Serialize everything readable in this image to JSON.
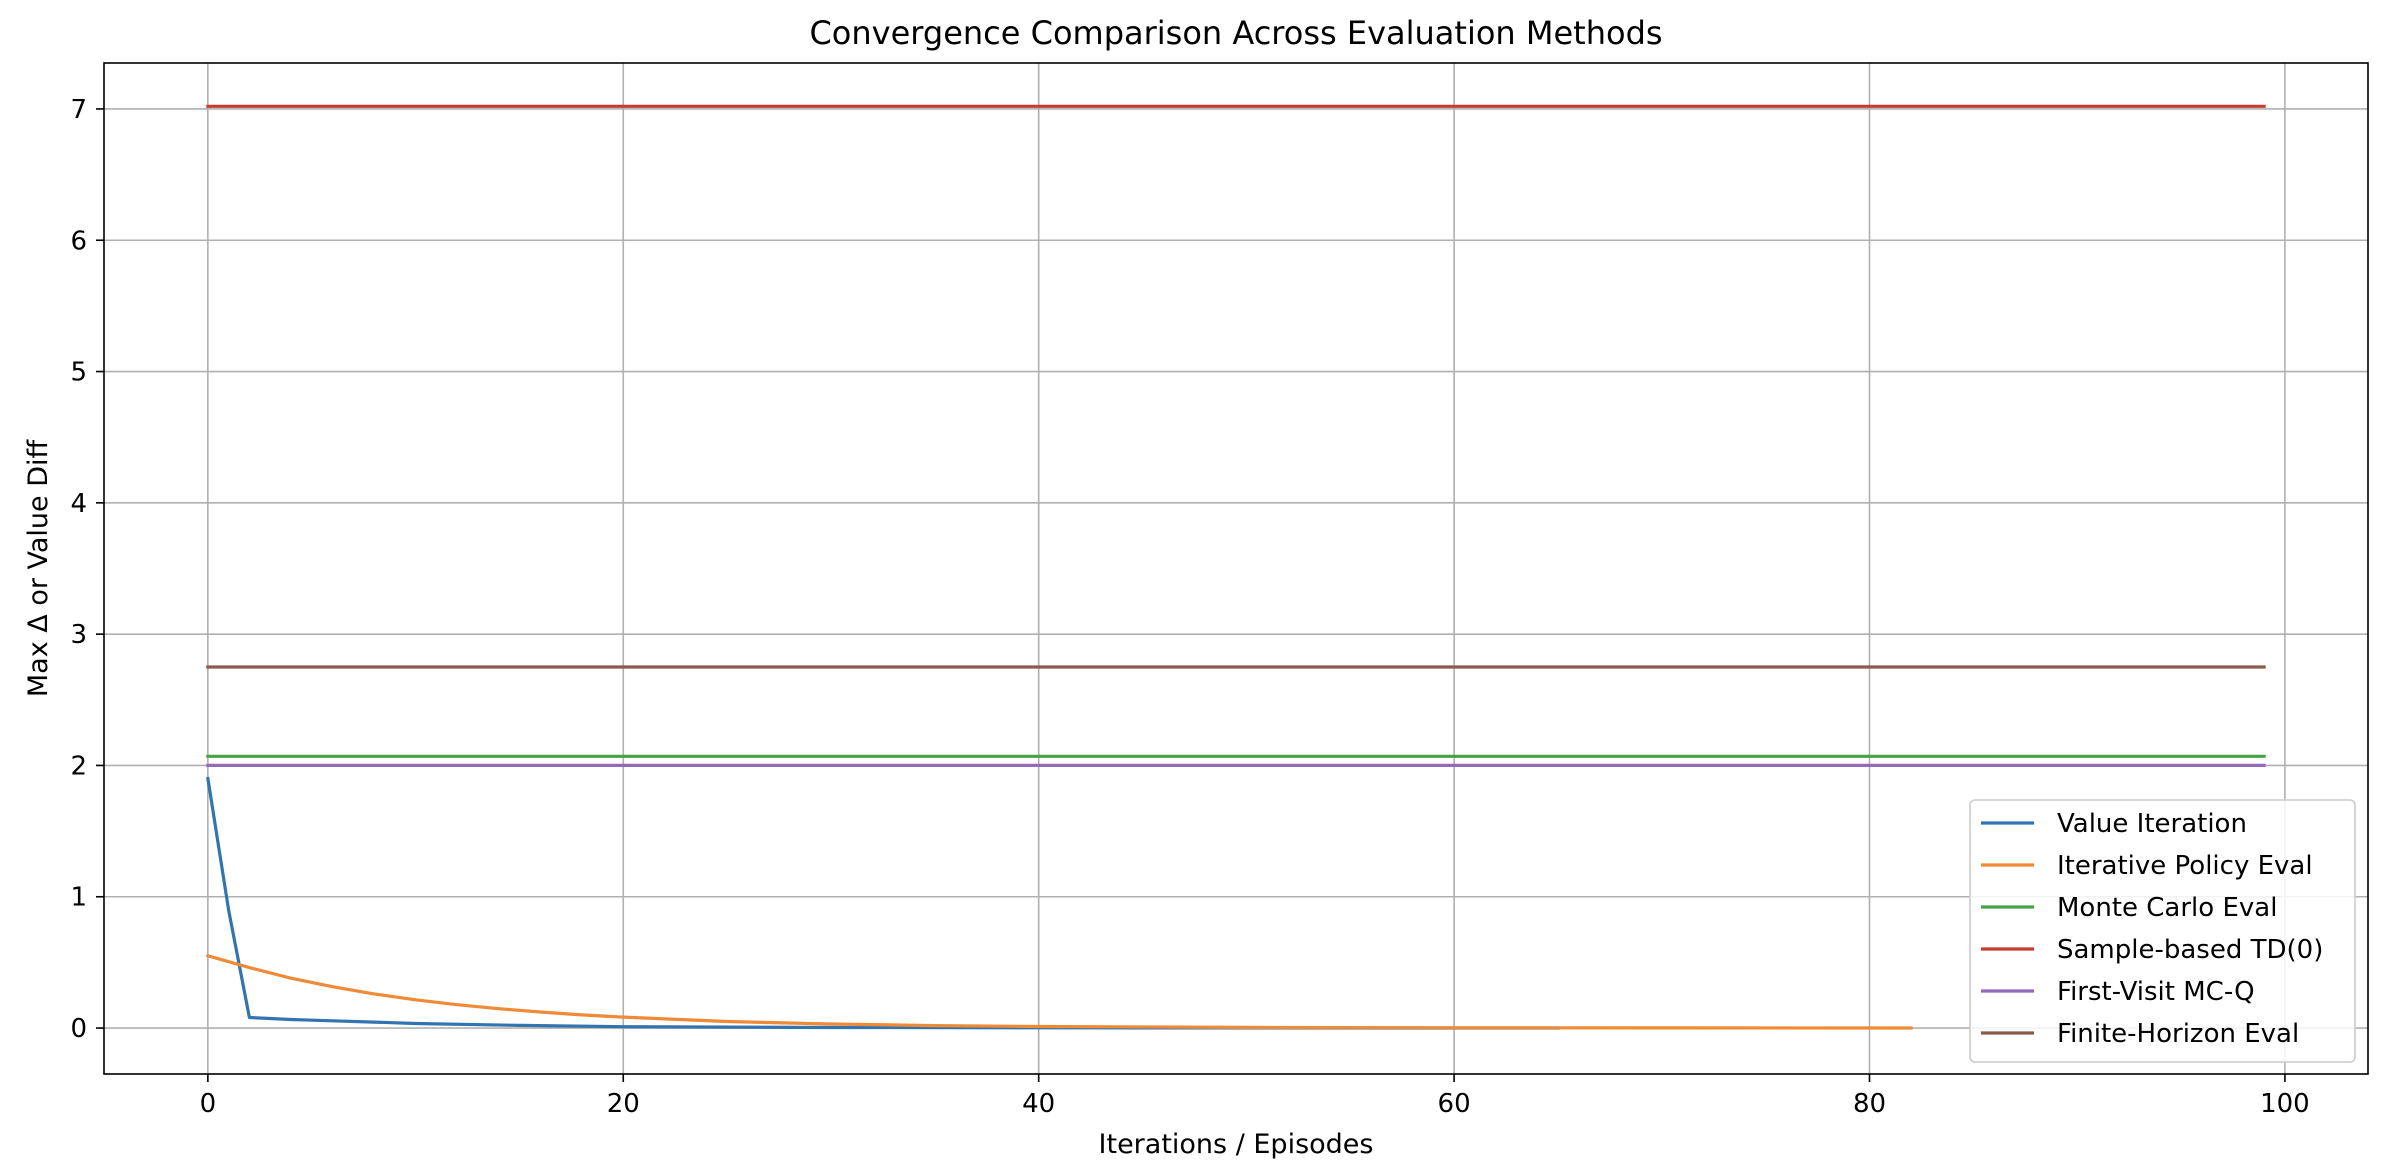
{
  "chart_data": {
    "type": "line",
    "title": "Convergence Comparison Across Evaluation Methods",
    "xlabel": "Iterations / Episodes",
    "ylabel": "Max Δ or Value Diff",
    "xlim": [
      -5,
      104
    ],
    "ylim": [
      -0.35,
      7.35
    ],
    "xticks": [
      0,
      20,
      40,
      60,
      80,
      100
    ],
    "yticks": [
      0,
      1,
      2,
      3,
      4,
      5,
      6,
      7
    ],
    "grid": true,
    "legend_position": "lower-right",
    "series": [
      {
        "name": "Value Iteration",
        "color": "#3274b0",
        "x": [
          0,
          1,
          2,
          4,
          6,
          8,
          10,
          15,
          20,
          30,
          40,
          50,
          60,
          65
        ],
        "y": [
          1.9,
          0.9,
          0.08,
          0.065,
          0.055,
          0.045,
          0.035,
          0.02,
          0.01,
          0.004,
          0.002,
          0.001,
          0.0005,
          0.0003
        ]
      },
      {
        "name": "Iterative Policy Eval",
        "color": "#ef8a36",
        "x": [
          0,
          2,
          4,
          6,
          8,
          10,
          12,
          14,
          16,
          18,
          20,
          25,
          30,
          35,
          40,
          50,
          60,
          70,
          82
        ],
        "y": [
          0.55,
          0.46,
          0.38,
          0.315,
          0.26,
          0.215,
          0.178,
          0.147,
          0.122,
          0.1,
          0.083,
          0.05,
          0.031,
          0.019,
          0.012,
          0.005,
          0.002,
          0.001,
          0.0002
        ]
      },
      {
        "name": "Monte Carlo Eval",
        "color": "#44a344",
        "x": [
          0,
          99
        ],
        "y": [
          2.07,
          2.07
        ]
      },
      {
        "name": "Sample-based TD(0)",
        "color": "#c53d33",
        "x": [
          0,
          99
        ],
        "y": [
          7.02,
          7.02
        ]
      },
      {
        "name": "First-Visit MC-Q",
        "color": "#9369be",
        "x": [
          0,
          99
        ],
        "y": [
          2.0,
          2.0
        ]
      },
      {
        "name": "Finite-Horizon Eval",
        "color": "#8b5a4b",
        "x": [
          0,
          99
        ],
        "y": [
          2.75,
          2.75
        ]
      }
    ]
  }
}
